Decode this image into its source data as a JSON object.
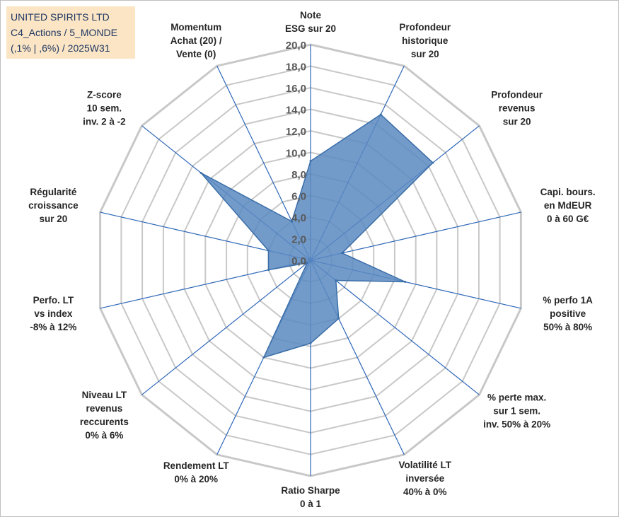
{
  "title_box": {
    "line1": "UNITED SPIRITS LTD",
    "line2": "C4_Actions / 5_MONDE",
    "line3": "(,1% | ,6%) / 2025W31"
  },
  "colors": {
    "fill": "#5b8ac1",
    "stroke": "#3a6ea8",
    "grid": "#c8c8c8",
    "spoke": "#2e67b8",
    "title_bg": "#fbe5c4",
    "title_text": "#1f3864"
  },
  "chart_data": {
    "type": "radar",
    "rmin": 0,
    "rmax": 20,
    "tick_step": 2,
    "tick_labels": [
      "0,0",
      "2,0",
      "4,0",
      "6,0",
      "8,0",
      "10,0",
      "12,0",
      "14,0",
      "16,0",
      "18,0",
      "20,0"
    ],
    "axes": [
      {
        "label": [
          "Note",
          "ESG sur 20"
        ],
        "value": 9.2
      },
      {
        "label": [
          "Profondeur",
          "historique",
          "sur 20"
        ],
        "value": 15.0
      },
      {
        "label": [
          "Profondeur",
          "revenus",
          "sur 20"
        ],
        "value": 14.5
      },
      {
        "label": [
          "Capi. bours.",
          "en MdEUR",
          "0 à 60 G€"
        ],
        "value": 3.0
      },
      {
        "label": [
          "% perfo 1A",
          "positive",
          "50% à 80%"
        ],
        "value": 9.0
      },
      {
        "label": [
          "% perte max.",
          "sur 1 sem.",
          "inv. 50% à 20%"
        ],
        "value": 3.0
      },
      {
        "label": [
          "Volatilité LT",
          "inversée",
          "40% à 0%"
        ],
        "value": 6.0
      },
      {
        "label": [
          "Ratio Sharpe",
          "0 à 1"
        ],
        "value": 7.7
      },
      {
        "label": [
          "Rendement LT",
          "0% à 20%"
        ],
        "value": 10.0
      },
      {
        "label": [
          "Niveau LT",
          "revenus",
          "reccurents",
          "0% à 6%"
        ],
        "value": 0.4
      },
      {
        "label": [
          "Perfo. LT",
          "vs index",
          "-8% à 12%"
        ],
        "value": 4.0
      },
      {
        "label": [
          "Régularité",
          "croissance",
          "sur 20"
        ],
        "value": 4.0
      },
      {
        "label": [
          "Z-score",
          "10 sem.",
          "inv. 2 à -2"
        ],
        "value": 13.0
      },
      {
        "label": [
          "Momentum",
          "Achat (20) /",
          "Vente (0)"
        ],
        "value": 4.0
      }
    ]
  }
}
